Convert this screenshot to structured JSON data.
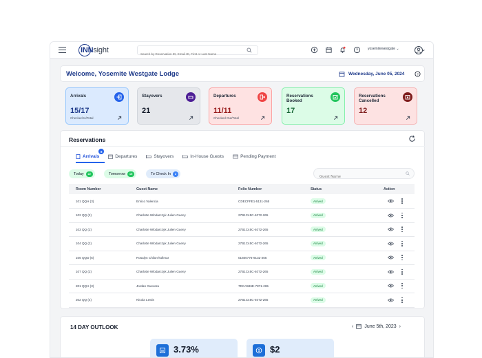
{
  "app": {
    "logo_main": "INN",
    "logo_light": "sight",
    "search_placeholder": "Search by Reservation ID, Email ID, First or Last Name",
    "user": "yosemitewestgate"
  },
  "welcome": {
    "title": "Welcome, Yosemite Westgate Lodge",
    "date": "Wednesday, June 05, 2024"
  },
  "cards": [
    {
      "title": "Arrivals",
      "value": "15/17",
      "sub": "Checked In/Total",
      "bg": "#dbeafe",
      "border": "#93c5fd",
      "icon_bg": "#2563eb",
      "value_color": "#1e3a8a",
      "icon": "arrivals-icon"
    },
    {
      "title": "Stayovers",
      "value": "21",
      "sub": "",
      "bg": "#e5e7eb",
      "border": "#d1d5db",
      "icon_bg": "#4c1d95",
      "value_color": "#111827",
      "icon": "bed-icon"
    },
    {
      "title": "Departures",
      "value": "11/11",
      "sub": "Checked Out/Total",
      "bg": "#fee2e2",
      "border": "#fca5a5",
      "icon_bg": "#ef4444",
      "value_color": "#991b1b",
      "icon": "departures-icon"
    },
    {
      "title": "Reservations Booked",
      "value": "17",
      "sub": "",
      "bg": "#dcfce7",
      "border": "#86efac",
      "icon_bg": "#22c55e",
      "value_color": "#166534",
      "icon": "calendar-check-icon"
    },
    {
      "title": "Reservations Cancelled",
      "value": "12",
      "sub": "",
      "bg": "#fde2e2",
      "border": "#f5b4b4",
      "icon_bg": "#7f1d1d",
      "value_color": "#7f1d1d",
      "icon": "calendar-x-icon"
    }
  ],
  "reservations": {
    "title": "Reservations",
    "tabs": [
      {
        "label": "Arrivals",
        "badge": "8"
      },
      {
        "label": "Departures"
      },
      {
        "label": "Stayovers"
      },
      {
        "label": "In-House Guests"
      },
      {
        "label": "Pending Payment"
      }
    ],
    "chips": [
      {
        "label": "Today",
        "count": "22",
        "bg": "#dcfce7",
        "cnt_bg": "#22c55e"
      },
      {
        "label": "Tomorrow",
        "count": "15",
        "bg": "#dcfce7",
        "cnt_bg": "#22c55e"
      },
      {
        "label": "To Check In",
        "count": "2",
        "bg": "#e0ecfb",
        "cnt_bg": "#3b82f6"
      }
    ],
    "guest_search_placeholder": "Guest Name",
    "columns": [
      "Room Number",
      "Guest Name",
      "Folio Number",
      "Status",
      "Action"
    ],
    "rows": [
      {
        "room": "101 QQH (3)",
        "guest": "Enrico Valencia",
        "folio": "CDECFFE1-5131-265",
        "status": "Arrived"
      },
      {
        "room": "102 QQ (2)",
        "guest": "Charlotte Wlodarczyk Julien Gueny",
        "folio": "27B1C45C-4072-265",
        "status": "Arrived"
      },
      {
        "room": "103 QQ (2)",
        "guest": "Charlotte Wlodarczyk Julien Gueny",
        "folio": "27B1C45C-4072-265",
        "status": "Arrived"
      },
      {
        "room": "104 QQ (2)",
        "guest": "Charlotte Wlodarczyk Julien Gueny",
        "folio": "27B1C45C-4072-265",
        "status": "Arrived"
      },
      {
        "room": "106 QQD (5)",
        "guest": "Rosalyn Chilon-kollmar",
        "folio": "01600776-9132-265",
        "status": "Arrived"
      },
      {
        "room": "107 QQ (2)",
        "guest": "Charlotte Wlodarczyk Julien Gueny",
        "folio": "27B1C45C-4072-265",
        "status": "Arrived"
      },
      {
        "room": "201 QQH (3)",
        "guest": "Jordan Guevara",
        "folio": "7DCA596E-7871-265",
        "status": "Arrived"
      },
      {
        "room": "202 QQ (4)",
        "guest": "Nicola Lewis",
        "folio": "27B1C45C-4072-265",
        "status": "Arrived"
      }
    ]
  },
  "outlook": {
    "title": "14 DAY OUTLOOK",
    "date": "June 5th, 2023",
    "metrics": [
      {
        "value": "3.73%",
        "icon": "occupancy-icon"
      },
      {
        "value": "$2",
        "icon": "dollar-icon"
      }
    ]
  }
}
